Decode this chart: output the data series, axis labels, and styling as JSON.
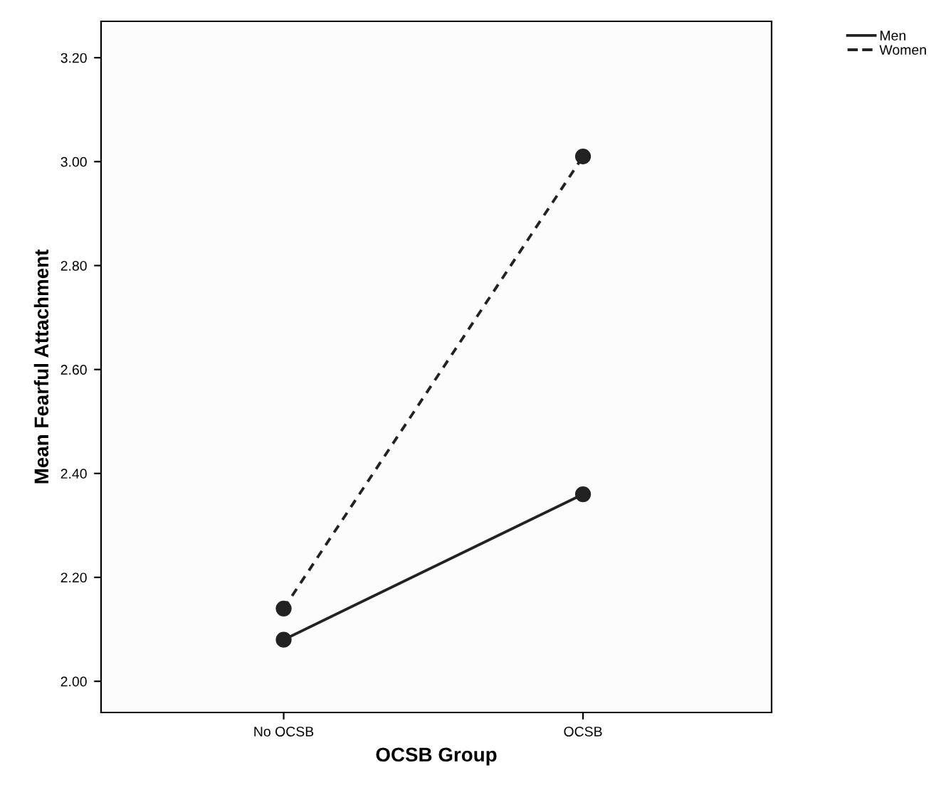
{
  "chart_data": {
    "type": "line",
    "xlabel": "OCSB Group",
    "ylabel": "Mean Fearful Attachment",
    "categories": [
      "No OCSB",
      "OCSB"
    ],
    "series": [
      {
        "name": "Men",
        "color": "#222222",
        "values": [
          2.08,
          2.36
        ],
        "line_style": "solid"
      },
      {
        "name": "Women",
        "color": "#222222",
        "values": [
          2.14,
          3.01
        ],
        "line_style": "dashed"
      }
    ],
    "ylim": [
      1.94,
      3.27
    ],
    "yticks": [
      {
        "value": 2.0,
        "label": "2.00"
      },
      {
        "value": 2.2,
        "label": "2.20"
      },
      {
        "value": 2.4,
        "label": "2.40"
      },
      {
        "value": 2.6,
        "label": "2.60"
      },
      {
        "value": 2.8,
        "label": "2.80"
      },
      {
        "value": 3.0,
        "label": "3.00"
      },
      {
        "value": 3.2,
        "label": "3.20"
      }
    ],
    "marker": "circle",
    "grid": false,
    "legend": "top right"
  }
}
